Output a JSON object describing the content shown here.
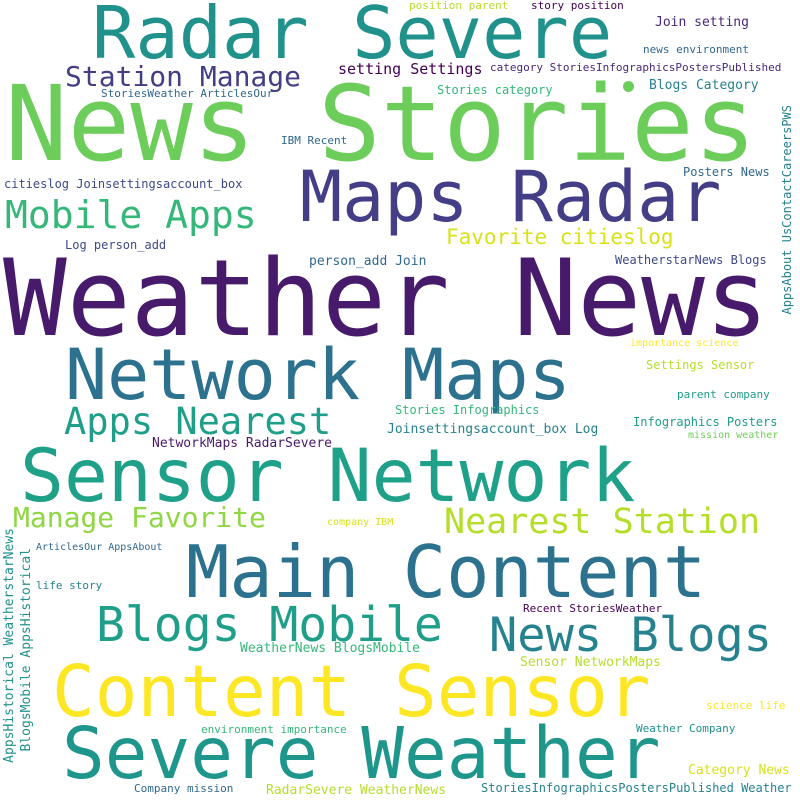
{
  "word_cloud": {
    "background": "#ffffff",
    "palette": [
      "#440154",
      "#482878",
      "#3e4a89",
      "#31688e",
      "#26828e",
      "#1f9e89",
      "#35b779",
      "#6ece58",
      "#b5de2b",
      "#fde725"
    ],
    "words": [
      {
        "text": "Radar Severe",
        "color": "#21918c"
      },
      {
        "text": "News Stories",
        "color": "#6ccd5a"
      },
      {
        "text": "Station Manage",
        "color": "#433e85"
      },
      {
        "text": "setting Settings",
        "color": "#440154"
      },
      {
        "text": "Maps Radar",
        "color": "#433e85"
      },
      {
        "text": "Mobile Apps",
        "color": "#35b779"
      },
      {
        "text": "Weather News",
        "color": "#481a6c"
      },
      {
        "text": "Network Maps",
        "color": "#2c728e"
      },
      {
        "text": "Apps Nearest",
        "color": "#1f9e89"
      },
      {
        "text": "Sensor Network",
        "color": "#1fa088"
      },
      {
        "text": "Manage Favorite",
        "color": "#8fd744"
      },
      {
        "text": "Nearest Station",
        "color": "#b5de2b"
      },
      {
        "text": "Main Content",
        "color": "#2c728e"
      },
      {
        "text": "Blogs Mobile",
        "color": "#1f9e89"
      },
      {
        "text": "News Blogs",
        "color": "#26828e"
      },
      {
        "text": "Content Sensor",
        "color": "#fde725"
      },
      {
        "text": "Severe Weather",
        "color": "#1f968b"
      },
      {
        "text": "position parent",
        "color": "#b5de2b"
      },
      {
        "text": "story position",
        "color": "#440154"
      },
      {
        "text": "Join setting",
        "color": "#482878"
      },
      {
        "text": "news environment",
        "color": "#31688e"
      },
      {
        "text": "category StoriesInfographicsPostersPublished",
        "color": "#482878"
      },
      {
        "text": "Stories category",
        "color": "#35b779"
      },
      {
        "text": "Blogs Category",
        "color": "#26828e"
      },
      {
        "text": "StoriesWeather ArticlesOur",
        "color": "#31688e"
      },
      {
        "text": "IBM Recent",
        "color": "#31688e"
      },
      {
        "text": "citieslog Joinsettingsaccount_box",
        "color": "#3e4a89"
      },
      {
        "text": "Posters News",
        "color": "#31688e"
      },
      {
        "text": "Log person_add",
        "color": "#3e4a89"
      },
      {
        "text": "Favorite citieslog",
        "color": "#d8e219"
      },
      {
        "text": "person_add Join",
        "color": "#31688e"
      },
      {
        "text": "WeatherstarNews Blogs",
        "color": "#3e4a89"
      },
      {
        "text": "AppsAbout UsContactCareersPWS",
        "color": "#26828e"
      },
      {
        "text": "importance science",
        "color": "#fde725"
      },
      {
        "text": "Settings Sensor",
        "color": "#b5de2b"
      },
      {
        "text": "parent company",
        "color": "#1f9e89"
      },
      {
        "text": "Stories Infographics",
        "color": "#35b779"
      },
      {
        "text": "Infographics Posters",
        "color": "#1f9e89"
      },
      {
        "text": "Joinsettingsaccount_box Log",
        "color": "#26828e"
      },
      {
        "text": "NetworkMaps RadarSevere",
        "color": "#481a6c"
      },
      {
        "text": "mission weather",
        "color": "#6ece58"
      },
      {
        "text": "AppsHistorical WeatherstarNews",
        "color": "#21918c"
      },
      {
        "text": "BlogsMobile AppsHistorical",
        "color": "#21918c"
      },
      {
        "text": "company IBM",
        "color": "#d8e219"
      },
      {
        "text": "ArticlesOur AppsAbout",
        "color": "#31688e"
      },
      {
        "text": "life story",
        "color": "#26828e"
      },
      {
        "text": "Recent StoriesWeather",
        "color": "#440154"
      },
      {
        "text": "WeatherNews BlogsMobile",
        "color": "#35b779"
      },
      {
        "text": "Sensor NetworkMaps",
        "color": "#b5de2b"
      },
      {
        "text": "science life",
        "color": "#fde725"
      },
      {
        "text": "environment importance",
        "color": "#35b779"
      },
      {
        "text": "Weather Company",
        "color": "#21918c"
      },
      {
        "text": "Category News",
        "color": "#d8e219"
      },
      {
        "text": "Company mission",
        "color": "#31688e"
      },
      {
        "text": "RadarSevere WeatherNews",
        "color": "#b5de2b"
      },
      {
        "text": "StoriesInfographicsPostersPublished Weather",
        "color": "#26828e"
      }
    ]
  }
}
